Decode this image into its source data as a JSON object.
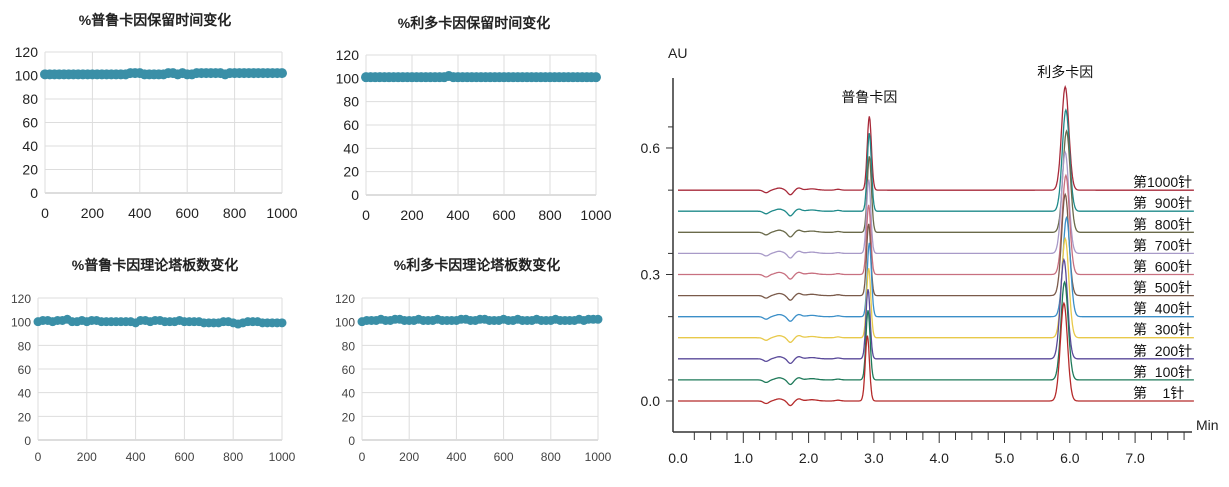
{
  "chart_data": [
    {
      "type": "scatter",
      "title": "%普鲁卡因保留时间变化",
      "ylim": [
        0,
        120
      ],
      "xlim": [
        0,
        1000
      ],
      "yticks": [
        "0",
        "20",
        "40",
        "60",
        "80",
        "100",
        "120"
      ],
      "xticks": [
        "0",
        "200",
        "400",
        "600",
        "800",
        "1000"
      ],
      "color": "#3a8fa7",
      "grid": true,
      "x": [
        0,
        20,
        40,
        60,
        80,
        100,
        120,
        140,
        160,
        180,
        200,
        220,
        240,
        260,
        280,
        300,
        320,
        340,
        360,
        380,
        400,
        420,
        440,
        460,
        480,
        500,
        520,
        540,
        560,
        580,
        600,
        620,
        640,
        660,
        680,
        700,
        720,
        740,
        760,
        780,
        800,
        820,
        840,
        860,
        880,
        900,
        920,
        940,
        960,
        980,
        1000
      ],
      "y": [
        101,
        101,
        101,
        101,
        101,
        101,
        101,
        101,
        101,
        101,
        101,
        101,
        101,
        101,
        101,
        101,
        101,
        101,
        102,
        102,
        102,
        101,
        101,
        101,
        101,
        101,
        102,
        102,
        101,
        102,
        101,
        101,
        102,
        102,
        102,
        102,
        102,
        102,
        101,
        102,
        102,
        102,
        102,
        102,
        102,
        102,
        102,
        102,
        102,
        102,
        102
      ]
    },
    {
      "type": "scatter",
      "title": "%利多卡因保留时间变化",
      "ylim": [
        0,
        120
      ],
      "xlim": [
        0,
        1000
      ],
      "yticks": [
        "0",
        "20",
        "40",
        "60",
        "80",
        "100",
        "120"
      ],
      "xticks": [
        "0",
        "200",
        "400",
        "600",
        "800",
        "1000"
      ],
      "color": "#3a8fa7",
      "grid": true,
      "x": [
        0,
        20,
        40,
        60,
        80,
        100,
        120,
        140,
        160,
        180,
        200,
        220,
        240,
        260,
        280,
        300,
        320,
        340,
        360,
        380,
        400,
        420,
        440,
        460,
        480,
        500,
        520,
        540,
        560,
        580,
        600,
        620,
        640,
        660,
        680,
        700,
        720,
        740,
        760,
        780,
        800,
        820,
        840,
        860,
        880,
        900,
        920,
        940,
        960,
        980,
        1000
      ],
      "y": [
        101,
        101,
        101,
        101,
        101,
        101,
        101,
        101,
        101,
        101,
        101,
        101,
        101,
        101,
        101,
        101,
        101,
        101,
        102,
        101,
        101,
        101,
        101,
        101,
        101,
        101,
        101,
        101,
        101,
        101,
        101,
        101,
        101,
        101,
        101,
        101,
        101,
        101,
        101,
        101,
        101,
        101,
        101,
        101,
        101,
        101,
        101,
        101,
        101,
        101,
        101
      ]
    },
    {
      "type": "scatter",
      "title": "%普鲁卡因理论塔板数变化",
      "ylim": [
        0,
        120
      ],
      "xlim": [
        0,
        1000
      ],
      "yticks": [
        "0",
        "20",
        "40",
        "60",
        "80",
        "100",
        "120"
      ],
      "xticks": [
        "0",
        "200",
        "400",
        "600",
        "800",
        "1000"
      ],
      "color": "#3a8fa7",
      "grid": true,
      "x": [
        0,
        20,
        40,
        60,
        80,
        100,
        120,
        140,
        160,
        180,
        200,
        220,
        240,
        260,
        280,
        300,
        320,
        340,
        360,
        380,
        400,
        420,
        440,
        460,
        480,
        500,
        520,
        540,
        560,
        580,
        600,
        620,
        640,
        660,
        680,
        700,
        720,
        740,
        760,
        780,
        800,
        820,
        840,
        860,
        880,
        900,
        920,
        940,
        960,
        980,
        1000
      ],
      "y": [
        100,
        101,
        101,
        100,
        101,
        101,
        102,
        100,
        100,
        101,
        100,
        101,
        101,
        100,
        100,
        100,
        100,
        100,
        100,
        100,
        99,
        101,
        101,
        100,
        101,
        101,
        100,
        100,
        100,
        101,
        100,
        100,
        100,
        100,
        99,
        99,
        99,
        99,
        100,
        100,
        99,
        98,
        99,
        100,
        100,
        100,
        99,
        99,
        99,
        99,
        99
      ]
    },
    {
      "type": "scatter",
      "title": "%利多卡因理论塔板数变化",
      "ylim": [
        0,
        120
      ],
      "xlim": [
        0,
        1000
      ],
      "yticks": [
        "0",
        "20",
        "40",
        "60",
        "80",
        "100",
        "120"
      ],
      "xticks": [
        "0",
        "200",
        "400",
        "600",
        "800",
        "1000"
      ],
      "color": "#3a8fa7",
      "grid": true,
      "x": [
        0,
        20,
        40,
        60,
        80,
        100,
        120,
        140,
        160,
        180,
        200,
        220,
        240,
        260,
        280,
        300,
        320,
        340,
        360,
        380,
        400,
        420,
        440,
        460,
        480,
        500,
        520,
        540,
        560,
        580,
        600,
        620,
        640,
        660,
        680,
        700,
        720,
        740,
        760,
        780,
        800,
        820,
        840,
        860,
        880,
        900,
        920,
        940,
        960,
        980,
        1000
      ],
      "y": [
        100,
        101,
        101,
        101,
        102,
        101,
        101,
        102,
        102,
        101,
        101,
        101,
        102,
        101,
        101,
        101,
        102,
        101,
        101,
        101,
        101,
        102,
        102,
        101,
        101,
        102,
        102,
        101,
        101,
        101,
        102,
        101,
        101,
        102,
        101,
        101,
        101,
        102,
        101,
        101,
        101,
        102,
        101,
        101,
        101,
        101,
        102,
        101,
        102,
        102,
        102
      ]
    },
    {
      "type": "line",
      "title": "",
      "ylabel": "AU",
      "xlabel": "Min",
      "xlim": [
        0,
        7.9
      ],
      "ylim": [
        -0.07,
        0.77
      ],
      "yticks": [
        {
          "v": 0.0,
          "label": "0.0"
        },
        {
          "v": 0.3,
          "label": "0.3"
        },
        {
          "v": 0.6,
          "label": "0.6"
        }
      ],
      "xticks": [
        {
          "v": 0,
          "label": "0.0"
        },
        {
          "v": 1,
          "label": "1.0"
        },
        {
          "v": 2,
          "label": "2.0"
        },
        {
          "v": 3,
          "label": "3.0"
        },
        {
          "v": 4,
          "label": "4.0"
        },
        {
          "v": 5,
          "label": "5.0"
        },
        {
          "v": 6,
          "label": "6.0"
        },
        {
          "v": 7,
          "label": "7.0"
        }
      ],
      "annotations": [
        {
          "text": "普鲁卡因",
          "x": 2.93
        },
        {
          "text": "利多卡因",
          "x": 5.93
        }
      ],
      "series": [
        {
          "name": "第    1针",
          "offset": 0.0,
          "color": "#b52a2a",
          "p1": {
            "rt": 2.9,
            "h": 0.155
          },
          "p2": {
            "rt": 5.91,
            "h": 0.232
          }
        },
        {
          "name": "第  100针",
          "offset": 0.05,
          "color": "#1f7a5a",
          "p1": {
            "rt": 2.91,
            "h": 0.165
          },
          "p2": {
            "rt": 5.92,
            "h": 0.232
          }
        },
        {
          "name": "第  200针",
          "offset": 0.1,
          "color": "#5a4a9a",
          "p1": {
            "rt": 2.91,
            "h": 0.165
          },
          "p2": {
            "rt": 5.91,
            "h": 0.235
          }
        },
        {
          "name": "第  300针",
          "offset": 0.15,
          "color": "#e8c94a",
          "p1": {
            "rt": 2.92,
            "h": 0.165
          },
          "p2": {
            "rt": 5.93,
            "h": 0.235
          }
        },
        {
          "name": "第  400针",
          "offset": 0.2,
          "color": "#3b8fc8",
          "p1": {
            "rt": 2.93,
            "h": 0.175
          },
          "p2": {
            "rt": 5.95,
            "h": 0.235
          }
        },
        {
          "name": "第  500针",
          "offset": 0.25,
          "color": "#7a5a4a",
          "p1": {
            "rt": 2.92,
            "h": 0.17
          },
          "p2": {
            "rt": 5.93,
            "h": 0.24
          }
        },
        {
          "name": "第  600针",
          "offset": 0.3,
          "color": "#c87080",
          "p1": {
            "rt": 2.92,
            "h": 0.165
          },
          "p2": {
            "rt": 5.94,
            "h": 0.235
          }
        },
        {
          "name": "第  700针",
          "offset": 0.35,
          "color": "#a89ac8",
          "p1": {
            "rt": 2.92,
            "h": 0.175
          },
          "p2": {
            "rt": 5.93,
            "h": 0.24
          }
        },
        {
          "name": "第  800针",
          "offset": 0.4,
          "color": "#6a6a4a",
          "p1": {
            "rt": 2.93,
            "h": 0.18
          },
          "p2": {
            "rt": 5.95,
            "h": 0.24
          }
        },
        {
          "name": "第  900针",
          "offset": 0.45,
          "color": "#1f8a8a",
          "p1": {
            "rt": 2.93,
            "h": 0.185
          },
          "p2": {
            "rt": 5.94,
            "h": 0.24
          }
        },
        {
          "name": "第1000针",
          "offset": 0.5,
          "color": "#a82a3a",
          "p1": {
            "rt": 2.93,
            "h": 0.175
          },
          "p2": {
            "rt": 5.93,
            "h": 0.245
          }
        }
      ]
    }
  ]
}
